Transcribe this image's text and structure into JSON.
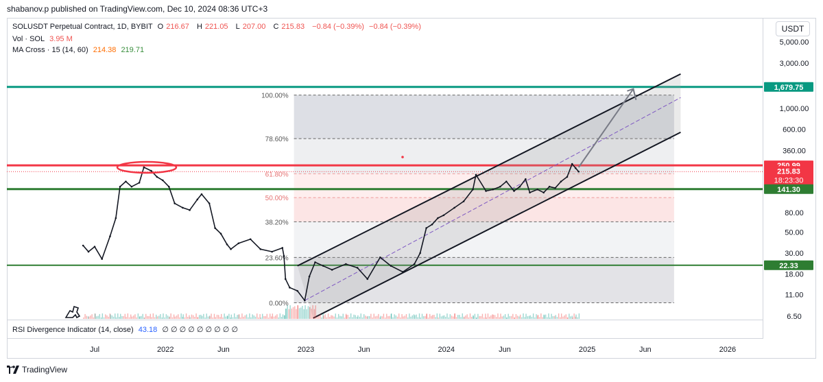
{
  "header": {
    "published": "shabanov.p published on TradingView.com, Dec 10, 2024 08:36 UTC+3"
  },
  "legend": {
    "symbol": "SOLUSDT Perpetual Contract, 1D, BYBIT",
    "o_label": "O",
    "o": "216.67",
    "h_label": "H",
    "h": "221.05",
    "l_label": "L",
    "l": "207.00",
    "c_label": "C",
    "c": "215.83",
    "change": "−0.84 (−0.39%)",
    "change2": "−0.84 (−0.39%)",
    "vol_label": "Vol · SOL",
    "vol": "3.95 M",
    "ma_label": "MA Cross · 15 (14, 60)",
    "ma1": "214.38",
    "ma2": "219.71"
  },
  "currency": "USDT",
  "rsi": {
    "label": "RSI Divergence Indicator (14, close)",
    "value": "43.18",
    "zeros": "∅ ∅ ∅ ∅ ∅ ∅ ∅ ∅ ∅"
  },
  "footer": {
    "brand": "TradingView"
  },
  "colors": {
    "up": "#26a69a",
    "down": "#ef5350",
    "teal_line": "#089981",
    "red_line": "#f23645",
    "green_line": "#2e7d32",
    "accent": "#2962ff"
  },
  "chart_data": {
    "type": "line",
    "title": "SOLUSDT Perpetual Contract, 1D, BYBIT",
    "y_scale": "log",
    "ylim": [
      6.5,
      6500
    ],
    "y_ticks": [
      "5,000.00",
      "3,000.00",
      "1,000.00",
      "600.00",
      "360.00",
      "80.00",
      "50.00",
      "30.00",
      "18.00",
      "11.00",
      "6.50"
    ],
    "x_ticks": [
      "Jul",
      "2022",
      "Jun",
      "2023",
      "Jun",
      "2024",
      "Jun",
      "2025",
      "Jun",
      "2026"
    ],
    "series": [
      {
        "x": [
          "2021-06-01",
          "2021-06-15",
          "2021-07-01",
          "2021-07-20",
          "2021-08-10",
          "2021-08-25",
          "2021-09-05",
          "2021-09-20",
          "2021-10-05",
          "2021-10-25",
          "2021-11-06",
          "2021-11-25",
          "2021-12-10",
          "2021-12-25",
          "2022-01-10",
          "2022-01-25",
          "2022-02-15",
          "2022-03-05",
          "2022-03-25",
          "2022-04-05",
          "2022-04-25",
          "2022-05-10",
          "2022-05-25",
          "2022-06-10",
          "2022-06-20",
          "2022-07-10",
          "2022-08-10",
          "2022-09-05",
          "2022-10-05",
          "2022-11-01",
          "2022-11-05",
          "2022-11-09",
          "2022-11-20",
          "2022-12-10",
          "2022-12-29",
          "2023-01-10",
          "2023-01-25",
          "2023-02-15",
          "2023-03-10",
          "2023-04-15",
          "2023-05-15",
          "2023-06-10",
          "2023-07-13",
          "2023-08-10",
          "2023-09-10",
          "2023-10-10",
          "2023-10-25",
          "2023-11-10",
          "2023-11-25",
          "2023-12-10",
          "2023-12-25",
          "2024-01-22",
          "2024-02-15",
          "2024-03-10",
          "2024-03-18",
          "2024-04-13",
          "2024-05-01",
          "2024-05-20",
          "2024-06-05",
          "2024-06-25",
          "2024-07-10",
          "2024-07-25",
          "2024-08-05",
          "2024-08-25",
          "2024-09-10",
          "2024-09-25",
          "2024-10-10",
          "2024-10-25",
          "2024-11-10",
          "2024-11-23",
          "2024-12-02",
          "2024-12-10"
        ],
        "y": [
          36,
          31,
          35,
          26,
          45,
          70,
          150,
          170,
          150,
          165,
          240,
          220,
          190,
          175,
          150,
          100,
          90,
          85,
          110,
          125,
          100,
          55,
          48,
          37,
          33,
          38,
          42,
          33,
          31,
          34,
          28,
          16,
          13,
          12,
          9.5,
          17,
          24,
          22,
          20,
          23,
          21,
          16,
          27,
          22,
          19,
          23,
          30,
          55,
          60,
          70,
          75,
          90,
          105,
          140,
          200,
          135,
          140,
          150,
          170,
          135,
          150,
          180,
          130,
          140,
          130,
          150,
          145,
          170,
          190,
          260,
          235,
          215.83
        ]
      }
    ],
    "horizontal_levels": [
      {
        "label": "1,679.75",
        "value": 1679.75,
        "color": "#089981"
      },
      {
        "label": "250.99",
        "value": 250.99,
        "color": "#f23645"
      },
      {
        "label": "215.83",
        "value": 215.83,
        "color": "#f23645",
        "sub": "18:23:30"
      },
      {
        "label": "141.30",
        "value": 141.3,
        "color": "#2e7d32"
      },
      {
        "label": "22.33",
        "value": 22.33,
        "color": "#2e7d32"
      }
    ],
    "fib_levels": [
      {
        "label": "100.00%",
        "value": 1380
      },
      {
        "label": "78.60%",
        "value": 480
      },
      {
        "label": "61.80%",
        "value": 205
      },
      {
        "label": "50.00%",
        "value": 115
      },
      {
        "label": "38.20%",
        "value": 64
      },
      {
        "label": "23.60%",
        "value": 27
      },
      {
        "label": "0.00%",
        "value": 9
      }
    ],
    "fib_x_range": [
      "2022-12-01",
      "2025-08-15"
    ]
  }
}
